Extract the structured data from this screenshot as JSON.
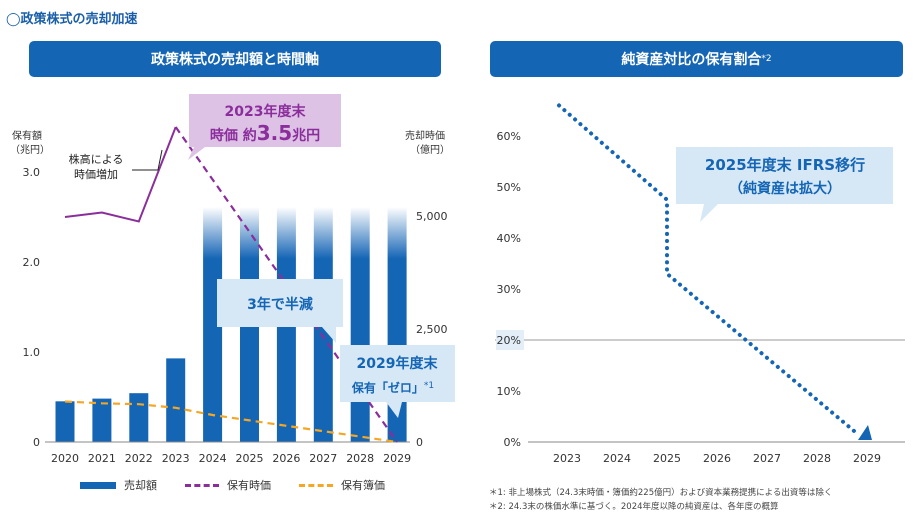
{
  "section_title": "◯政策株式の売却加速",
  "panel_left": {
    "title": "政策株式の売却額と時間軸"
  },
  "panel_right": {
    "title": "純資産対比の保有割合",
    "title_sup": "*2"
  },
  "colors": {
    "bar": "#1565b5",
    "market_value": "#8b2e9c",
    "book_value": "#f5a623",
    "callout_purple": "#ddc2e6",
    "callout_blue": "#d6e8f6",
    "accent": "#1565b5"
  },
  "chart_data": [
    {
      "type": "bar",
      "categories": [
        "2020",
        "2021",
        "2022",
        "2023",
        "2024",
        "2025",
        "2026",
        "2027",
        "2028",
        "2029"
      ],
      "y_left_label": [
        "保有額",
        "（兆円）"
      ],
      "y_left_ticks": [
        "0",
        "1.0",
        "2.0",
        "3.0"
      ],
      "y_left_lim": [
        0,
        3.3
      ],
      "y_right_label": [
        "売却時価",
        "（億円）"
      ],
      "y_right_ticks": [
        "0",
        "2,500",
        "5,000"
      ],
      "y_right_lim": [
        0,
        6000
      ],
      "series": [
        {
          "name": "売却額",
          "type": "bar",
          "axis": "right",
          "values": [
            900,
            960,
            1080,
            1850,
            5200,
            5200,
            5200,
            5200,
            5200,
            5200
          ],
          "note": "2024-2029 bars extend beyond the top"
        },
        {
          "name": "保有時価",
          "type": "line",
          "axis": "left",
          "values": [
            2.5,
            2.55,
            2.45,
            3.5,
            null,
            null,
            null,
            null,
            null,
            0
          ]
        },
        {
          "name": "保有簿価",
          "type": "line",
          "axis": "left",
          "values": [
            0.45,
            0.43,
            0.42,
            0.38,
            0.3,
            0.24,
            0.18,
            0.12,
            0.06,
            0
          ]
        }
      ],
      "annotations": {
        "peak": {
          "line1": "2023年度末",
          "line2_prefix": "時価 約",
          "line2_value": "3.5",
          "line2_unit": "兆円"
        },
        "rise": [
          "株高による",
          "時価増加"
        ],
        "half": "3年で半減",
        "zero": {
          "line1": "2029年度末",
          "line2": "保有「ゼロ」",
          "line2_sup": "*1"
        }
      },
      "legend": [
        "売却額",
        "保有時価",
        "保有簿価"
      ]
    },
    {
      "type": "line",
      "x": [
        "2023",
        "2024",
        "2025",
        "2026",
        "2027",
        "2028",
        "2029"
      ],
      "y_ticks": [
        "0%",
        "10%",
        "20%",
        "30%",
        "40%",
        "50%",
        "60%"
      ],
      "ylim": [
        0,
        66
      ],
      "highlight_y": 20,
      "series": [
        {
          "name": "",
          "values": [
            66,
            57.5,
            47.5,
            33,
            23,
            12,
            0
          ]
        }
      ],
      "annotation": [
        "2025年度末 IFRS移行",
        "（純資産は拡大）"
      ]
    }
  ],
  "notes": [
    "＊1: 非上場株式（24.3末時価・簿価約225億円）および資本業務提携による出資等は除く",
    "＊2: 24.3末の株価水準に基づく。2024年度以降の純資産は、各年度の概算"
  ]
}
